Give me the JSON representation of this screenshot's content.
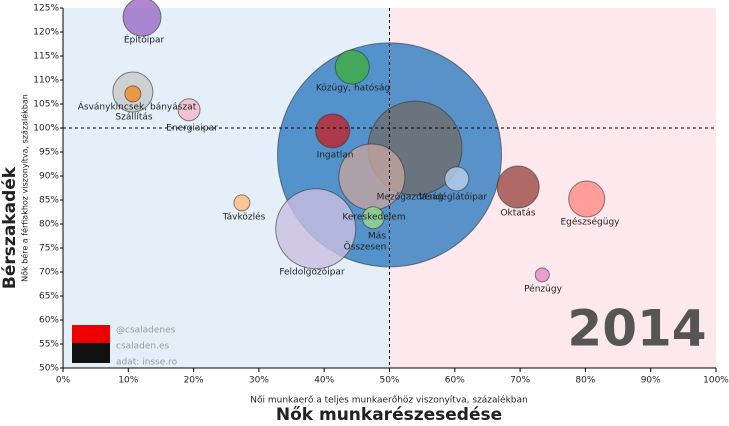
{
  "chart_data": {
    "type": "bubble",
    "title": "2014",
    "x_label": "Nők munkarészesedése",
    "x_sublabel": "Női munkaerő a teljes munkaerőhöz viszonyítva, százalékban",
    "y_label": "Bérszakadék",
    "y_sublabel": "Nők bére a férfiakhoz viszonyítva, százalékban",
    "credits": [
      "@csaladenes",
      "csaladen.es",
      "adat: insse.ro"
    ],
    "xlim": [
      0,
      100
    ],
    "ylim": [
      50,
      125
    ],
    "xticks": [
      {
        "value": 0,
        "label": "0%"
      },
      {
        "value": 10,
        "label": "10%"
      },
      {
        "value": 20,
        "label": "20%"
      },
      {
        "value": 30,
        "label": "30%"
      },
      {
        "value": 40,
        "label": "40%"
      },
      {
        "value": 50,
        "label": "50%"
      },
      {
        "value": 60,
        "label": "60%"
      },
      {
        "value": 70,
        "label": "70%"
      },
      {
        "value": 80,
        "label": "80%"
      },
      {
        "value": 90,
        "label": "90%"
      },
      {
        "value": 100,
        "label": "100%"
      }
    ],
    "yticks": [
      {
        "value": 50,
        "label": "50%"
      },
      {
        "value": 55,
        "label": "55%"
      },
      {
        "value": 60,
        "label": "60%"
      },
      {
        "value": 65,
        "label": "65%"
      },
      {
        "value": 70,
        "label": "70%"
      },
      {
        "value": 75,
        "label": "75%"
      },
      {
        "value": 80,
        "label": "80%"
      },
      {
        "value": 85,
        "label": "85%"
      },
      {
        "value": 90,
        "label": "90%"
      },
      {
        "value": 95,
        "label": "95%"
      },
      {
        "value": 100,
        "label": "100%"
      },
      {
        "value": 105,
        "label": "105%"
      },
      {
        "value": 110,
        "label": "110%"
      },
      {
        "value": 115,
        "label": "115%"
      },
      {
        "value": 120,
        "label": "120%"
      },
      {
        "value": 125,
        "label": "125%"
      }
    ],
    "vline": 50,
    "hline": 100,
    "points": [
      {
        "name": "Összesen",
        "x": 50,
        "y": 94.4,
        "size": 112,
        "color": "#2f7bbf"
      },
      {
        "name": "Mezőgazdaság",
        "x": 53.9,
        "y": 95.8,
        "size": 47,
        "color": "#6d6d6d"
      },
      {
        "name": "Feldolgozóipar",
        "x": 38.7,
        "y": 79,
        "size": 40,
        "color": "#c9bfe0"
      },
      {
        "name": "Kereskedelem",
        "x": 47.3,
        "y": 89.8,
        "size": 33,
        "color": "#c4a4a0"
      },
      {
        "name": "Oktatás",
        "x": 69.7,
        "y": 87.7,
        "size": 21,
        "color": "#9b4a45"
      },
      {
        "name": "Ásványkincsek, bányászat",
        "x": 10.7,
        "y": 107.5,
        "size": 20,
        "color": "#c8c8c8"
      },
      {
        "name": "Építőipar",
        "x": 12.1,
        "y": 123.1,
        "size": 19,
        "color": "#9b6ac4"
      },
      {
        "name": "Egészségügy",
        "x": 80.2,
        "y": 85.2,
        "size": 18,
        "color": "#ff8a85"
      },
      {
        "name": "Közügy, hatóság",
        "x": 44.3,
        "y": 112.7,
        "size": 17,
        "color": "#3fae3f"
      },
      {
        "name": "Ingatlan",
        "x": 41.3,
        "y": 99.4,
        "size": 17,
        "color": "#c0262b"
      },
      {
        "name": "Vendéglátóipar",
        "x": 60.3,
        "y": 89.4,
        "size": 12,
        "color": "#b8cfea"
      },
      {
        "name": "Energiaipar",
        "x": 19.3,
        "y": 103.8,
        "size": 11,
        "color": "#f5b8c6"
      },
      {
        "name": "Más",
        "x": 47.5,
        "y": 81.3,
        "size": 11,
        "color": "#9ad88a"
      },
      {
        "name": "Szállítás",
        "x": 10.7,
        "y": 107.1,
        "size": 8,
        "color": "#f28a1e"
      },
      {
        "name": "Távközlés",
        "x": 27.4,
        "y": 84.4,
        "size": 8,
        "color": "#ffbb78"
      },
      {
        "name": "Pénzügy",
        "x": 73.4,
        "y": 69.4,
        "size": 7,
        "color": "#e78ac8"
      }
    ]
  }
}
